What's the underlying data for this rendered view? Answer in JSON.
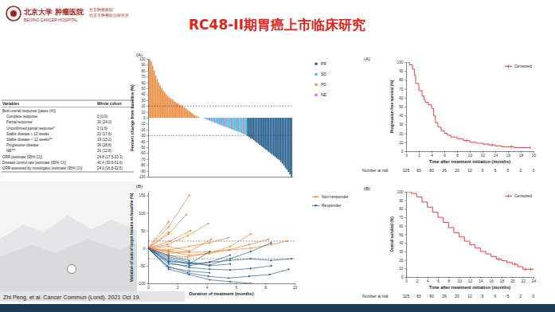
{
  "header": {
    "logo_cn": "北京大学 肿瘤医院",
    "logo_en": "BEIJING CANCER HOSPITAL",
    "logo_note": [
      "北京肿瘤医院",
      "北京市肿瘤防治研究所"
    ],
    "title": "RC48-II期胃癌上市临床研究"
  },
  "table": {
    "header": [
      "Variables",
      "Whole cohort"
    ],
    "rows": [
      [
        "Best overall response [cases (%)]"
      ],
      [
        "Complete response",
        "0 (0.0)"
      ],
      [
        "Partial response",
        "30 (24.0)"
      ],
      [
        "Unconfirmed partial response*",
        "2 (1.6)"
      ],
      [
        "Stable disease ≥ 12 weeks",
        "22 (17.6)"
      ],
      [
        "Stable disease < 12 weeks**",
        "19 (15.2)"
      ],
      [
        "Progressive disease",
        "36 (28.8)"
      ],
      [
        "NE***",
        "16 (12.8)"
      ],
      [
        "ORR [estimate (95% CI)]",
        "24.8 (17.5-33.3)"
      ],
      [
        "Disease control rate [estimate (95% CI)]",
        "42.4 (33.6-51.6)"
      ],
      [
        "ORR assessed by investigator [estimate (95% CI)]",
        "24.0 (16.8-32.5)"
      ]
    ]
  },
  "citation": "Zhi Peng, et al. Cancer Commun (Lond). 2021 Oct 19.",
  "chart_data": [
    {
      "type": "bar",
      "panel_label": "(A)",
      "y_label": "Percent change from baseline (%)",
      "xlim": [
        0,
        96
      ],
      "ylim": [
        -100,
        100
      ],
      "yticks": [
        -100,
        -90,
        -80,
        -70,
        -60,
        -50,
        -40,
        -30,
        -20,
        -10,
        0,
        10,
        20,
        30,
        40,
        50,
        60,
        70,
        80,
        90,
        100
      ],
      "tick_labels": "y",
      "legend": "right",
      "reference_lines": [
        20,
        -30
      ],
      "series": [
        {
          "name": "PR",
          "color": "#1f5a8c",
          "x": [
            66,
            67,
            68,
            69,
            70,
            71,
            72,
            73,
            74,
            75,
            76,
            77,
            78,
            79,
            80,
            81,
            82,
            83,
            84,
            85,
            86,
            87,
            88,
            89,
            90,
            91,
            92,
            93,
            94,
            95
          ],
          "values": [
            -31,
            -33,
            -35,
            -36,
            -38,
            -40,
            -42,
            -44,
            -46,
            -48,
            -50,
            -52,
            -54,
            -56,
            -58,
            -60,
            -62,
            -64,
            -66,
            -68,
            -70,
            -72,
            -75,
            -78,
            -81,
            -85,
            -88,
            -92,
            -96,
            -100
          ]
        },
        {
          "name": "SD",
          "color": "#3fc1d0",
          "x": [
            35,
            37,
            39,
            40,
            42,
            43,
            45,
            46,
            47,
            49,
            50,
            52,
            53,
            54,
            56,
            57,
            58,
            60,
            61,
            62,
            64,
            65
          ],
          "values": [
            0,
            -1,
            -3,
            -4,
            -6,
            -7,
            -9,
            -10,
            -11,
            -13,
            -14,
            -16,
            -17,
            -18,
            -20,
            -21,
            -22,
            -24,
            -25,
            -26,
            -28,
            -29
          ]
        },
        {
          "name": "PD",
          "color": "#f08a3c",
          "x": [
            1,
            2,
            3,
            4,
            5,
            6,
            7,
            8,
            9,
            10,
            11,
            12,
            13,
            14,
            15,
            16,
            17,
            18,
            19,
            20,
            21,
            22,
            23,
            24,
            25,
            26,
            27,
            28,
            29,
            30,
            31,
            32,
            33,
            34
          ],
          "values": [
            100,
            96,
            88,
            80,
            72,
            66,
            60,
            55,
            50,
            46,
            43,
            40,
            37,
            35,
            33,
            31,
            29,
            27,
            25,
            24,
            22,
            21,
            20,
            18,
            16,
            14,
            12,
            10,
            8,
            6,
            4,
            3,
            2,
            1
          ]
        },
        {
          "name": "NE",
          "color": "#d36ad6",
          "x": [
            36,
            38,
            41,
            44,
            48,
            51,
            55,
            59,
            63
          ],
          "values": [
            0,
            -2,
            -5,
            -8,
            -12,
            -15,
            -19,
            -23,
            -27
          ]
        }
      ]
    },
    {
      "type": "line",
      "panel_label": "(B)",
      "x_label": "Duration of treatment (months)",
      "y_label": "Variation of sum of target lesions vs baseline (%)",
      "xlim": [
        0,
        10
      ],
      "ylim": [
        -100,
        160
      ],
      "xticks": [
        0,
        2,
        4,
        6,
        8,
        10
      ],
      "yticks": [
        -100,
        -50,
        0,
        50,
        100,
        150
      ],
      "marker": "circle",
      "legend": "right",
      "reference_lines": [
        20,
        -30
      ],
      "series": [
        {
          "name": "Non-responder",
          "color": "#f07f2d",
          "lines": [
            {
              "x": [
                0,
                1.4,
                2.8
              ],
              "values": [
                0,
                60,
                150
              ]
            },
            {
              "x": [
                0,
                1.4,
                2.6
              ],
              "values": [
                0,
                40,
                95
              ]
            },
            {
              "x": [
                0,
                1.3,
                2.7,
                4.1
              ],
              "values": [
                0,
                10,
                35,
                70
              ]
            },
            {
              "x": [
                0,
                1.4
              ],
              "values": [
                0,
                45
              ]
            },
            {
              "x": [
                0,
                1.4,
                2.8,
                4.2,
                5.5
              ],
              "values": [
                0,
                -5,
                5,
                15,
                30
              ]
            },
            {
              "x": [
                0,
                1.5,
                2.9
              ],
              "values": [
                0,
                20,
                50
              ]
            },
            {
              "x": [
                0,
                1.4,
                2.8,
                4.3
              ],
              "values": [
                0,
                -15,
                -10,
                25
              ]
            },
            {
              "x": [
                0,
                1.4,
                2.8,
                4.2,
                5.6,
                7
              ],
              "values": [
                0,
                -10,
                -20,
                -15,
                5,
                40
              ]
            },
            {
              "x": [
                0,
                1.3,
                2.7,
                4.1,
                5.5,
                6.9,
                8.2
              ],
              "values": [
                0,
                -20,
                -25,
                -15,
                -5,
                10,
                25
              ]
            },
            {
              "x": [
                0,
                1.4,
                2.8
              ],
              "values": [
                0,
                5,
                -8
              ]
            },
            {
              "x": [
                0,
                1.4
              ],
              "values": [
                0,
                75
              ]
            },
            {
              "x": [
                0,
                1.4,
                2.8,
                4.2,
                5.6,
                7,
                8.4,
                9.5
              ],
              "values": [
                0,
                -8,
                -12,
                -10,
                -5,
                0,
                10,
                20
              ]
            }
          ]
        },
        {
          "name": "Responder",
          "color": "#2b5f93",
          "lines": [
            {
              "x": [
                0,
                1.4,
                2.8,
                4.2,
                5.6,
                7,
                8.4
              ],
              "values": [
                0,
                -40,
                -55,
                -60,
                -62,
                -58,
                -50
              ]
            },
            {
              "x": [
                0,
                1.4,
                2.8,
                4.2,
                5.6
              ],
              "values": [
                0,
                -35,
                -45,
                -40,
                -20
              ]
            },
            {
              "x": [
                0,
                1.3,
                2.7,
                4.1,
                5.5,
                6.9,
                8.3,
                9.6
              ],
              "values": [
                0,
                -50,
                -70,
                -80,
                -85,
                -80,
                -75,
                -60
              ]
            },
            {
              "x": [
                0,
                1.4,
                2.8,
                4.2
              ],
              "values": [
                0,
                -30,
                -45,
                -10
              ]
            },
            {
              "x": [
                0,
                1.4,
                2.8,
                4.2,
                5.6,
                7
              ],
              "values": [
                0,
                -60,
                -75,
                -90,
                -95,
                -100
              ]
            },
            {
              "x": [
                0,
                1.4,
                2.8
              ],
              "values": [
                0,
                -20,
                -35
              ]
            },
            {
              "x": [
                0,
                1.4,
                2.8,
                4.2,
                5.6,
                7,
                8.4,
                9.8
              ],
              "values": [
                0,
                -45,
                -50,
                -40,
                -35,
                -30,
                -35,
                -30
              ]
            },
            {
              "x": [
                0,
                1.4,
                2.8,
                4.2,
                5.6
              ],
              "values": [
                0,
                -25,
                -40,
                -50,
                -45
              ]
            },
            {
              "x": [
                0,
                1.4,
                2.8,
                4.2,
                5.6,
                7,
                8.4
              ],
              "values": [
                0,
                -38,
                -42,
                -48,
                -30,
                -10,
                15
              ]
            },
            {
              "x": [
                0,
                1.4,
                2.8,
                4.2
              ],
              "values": [
                0,
                -55,
                -65,
                -70
              ]
            }
          ]
        }
      ]
    },
    {
      "type": "line",
      "panel_label": "(A)",
      "x_label": "Time after treatment initiation (months)",
      "y_label": "Progression-free survival (%)",
      "xlim": [
        0,
        20
      ],
      "ylim": [
        0,
        100
      ],
      "xticks": [
        0,
        2,
        4,
        6,
        8,
        10,
        12,
        14,
        16,
        18,
        20
      ],
      "yticks": [
        0,
        10,
        20,
        30,
        40,
        50,
        60,
        70,
        80,
        90,
        100
      ],
      "legend": "top-right",
      "series": [
        {
          "name": "Censored",
          "color": "#e8262b",
          "line_style": "step",
          "marker": "tick",
          "x": [
            0,
            0.5,
            1,
            1.3,
            1.5,
            2,
            2.5,
            2.8,
            3,
            3.5,
            4,
            4.3,
            4.6,
            5,
            5.5,
            6,
            6.5,
            7,
            8,
            9,
            10,
            11,
            12,
            13,
            14,
            15,
            16,
            17,
            18,
            19.5
          ],
          "values": [
            100,
            97,
            92,
            85,
            76,
            68,
            62,
            58,
            55,
            52,
            48,
            40,
            32,
            27,
            23,
            20,
            18,
            16,
            14,
            12,
            10,
            9,
            8,
            7,
            6,
            5,
            5,
            4,
            4,
            4
          ],
          "censored": {
            "x": [
              9.5,
              13.5,
              16.5,
              19.5
            ],
            "values": [
              12,
              7,
              5,
              4
            ]
          }
        }
      ],
      "at_risk": {
        "label": "Number at risk",
        "x": [
          0,
          2,
          4,
          6,
          8,
          10,
          12,
          14,
          16,
          18,
          20
        ],
        "values": [
          125,
          83,
          60,
          26,
          20,
          12,
          9,
          6,
          5,
          2,
          0
        ]
      }
    },
    {
      "type": "line",
      "panel_label": "(B)",
      "x_label": "Time after treatment initiation (months)",
      "y_label": "Overall survival (%)",
      "xlim": [
        0,
        24
      ],
      "ylim": [
        0,
        100
      ],
      "xticks": [
        0,
        2,
        4,
        6,
        8,
        10,
        12,
        14,
        16,
        18,
        20,
        22,
        24
      ],
      "yticks": [
        0,
        10,
        20,
        30,
        40,
        50,
        60,
        70,
        80,
        90,
        100
      ],
      "legend": "top-right",
      "series": [
        {
          "name": "Censored",
          "color": "#e8262b",
          "line_style": "step",
          "marker": "tick",
          "x": [
            0,
            1,
            2,
            3,
            4,
            5,
            6,
            7,
            8,
            9,
            10,
            11,
            12,
            13,
            14,
            15,
            16,
            17,
            18,
            19,
            20,
            21,
            22,
            23,
            24
          ],
          "values": [
            100,
            98,
            94,
            88,
            82,
            76,
            70,
            64,
            58,
            52,
            47,
            42,
            38,
            34,
            30,
            27,
            24,
            21,
            19,
            17,
            15,
            12,
            9,
            9,
            9
          ],
          "censored": {
            "x": [
              17.5,
              20.5,
              22.5,
              23.5
            ],
            "values": [
              21,
              15,
              9,
              9
            ]
          }
        }
      ],
      "at_risk": {
        "label": "Number at risk",
        "x": [
          0,
          2.4,
          4.8,
          7.2,
          9.6,
          12,
          14.4,
          16.8,
          19.2,
          21.6,
          24
        ],
        "values": [
          125,
          83,
          60,
          26,
          20,
          12,
          9,
          6,
          5,
          2,
          0
        ]
      }
    }
  ]
}
